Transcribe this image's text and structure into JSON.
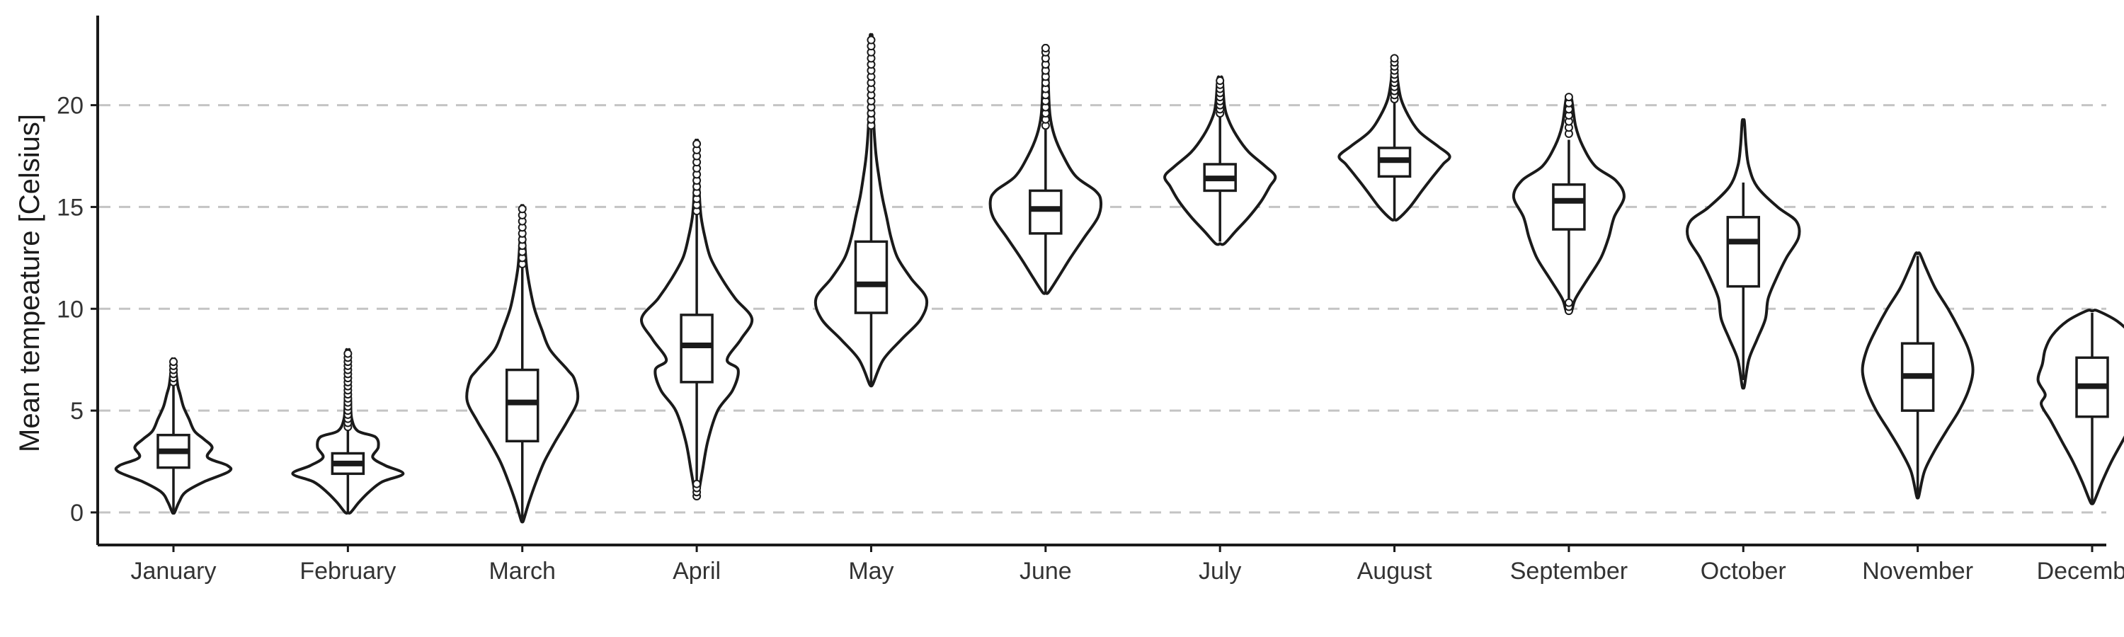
{
  "chart_data": {
    "type": "violin",
    "title": "",
    "xlabel": "",
    "ylabel": "Mean tempeature [Celsius]",
    "ylim": [
      -1.6,
      24.4
    ],
    "yticks": [
      0,
      5,
      10,
      15,
      20
    ],
    "grid": "horizontal dashed",
    "colors": {
      "ink": "#1a1a1a",
      "grid": "#c4c4c4",
      "fill": "#ffffff"
    },
    "categories": [
      "January",
      "February",
      "March",
      "April",
      "May",
      "June",
      "July",
      "August",
      "September",
      "October",
      "November",
      "December"
    ],
    "series": [
      {
        "category": "January",
        "min": 0.0,
        "q1": 2.2,
        "median": 3.0,
        "q3": 3.8,
        "max": 6.2,
        "density": [
          [
            0.0,
            0.02
          ],
          [
            0.5,
            0.1
          ],
          [
            1.0,
            0.22
          ],
          [
            1.5,
            0.55
          ],
          [
            2.0,
            1.0
          ],
          [
            2.3,
            0.98
          ],
          [
            2.7,
            0.62
          ],
          [
            3.2,
            0.7
          ],
          [
            3.6,
            0.55
          ],
          [
            4.0,
            0.38
          ],
          [
            4.6,
            0.28
          ],
          [
            5.2,
            0.18
          ],
          [
            5.8,
            0.12
          ],
          [
            6.2,
            0.08
          ],
          [
            6.8,
            0.05
          ],
          [
            7.5,
            0.03
          ]
        ],
        "outliers": [
          6.4,
          6.6,
          6.8,
          7.0,
          7.2,
          7.4
        ]
      },
      {
        "category": "February",
        "min": 0.0,
        "q1": 1.9,
        "median": 2.4,
        "q3": 2.9,
        "max": 4.0,
        "density": [
          [
            0.0,
            0.05
          ],
          [
            0.5,
            0.2
          ],
          [
            1.0,
            0.38
          ],
          [
            1.5,
            0.62
          ],
          [
            1.9,
            1.0
          ],
          [
            2.3,
            0.68
          ],
          [
            2.7,
            0.45
          ],
          [
            3.2,
            0.55
          ],
          [
            3.7,
            0.5
          ],
          [
            4.0,
            0.18
          ],
          [
            4.6,
            0.07
          ],
          [
            5.5,
            0.05
          ],
          [
            6.5,
            0.04
          ],
          [
            7.9,
            0.03
          ]
        ],
        "outliers": [
          4.2,
          4.4,
          4.6,
          4.8,
          5.0,
          5.2,
          5.4,
          5.6,
          5.8,
          6.0,
          6.2,
          6.4,
          6.6,
          6.8,
          7.0,
          7.2,
          7.4,
          7.6,
          7.8
        ]
      },
      {
        "category": "March",
        "min": -0.4,
        "q1": 3.5,
        "median": 5.4,
        "q3": 7.0,
        "max": 12.0,
        "density": [
          [
            -0.4,
            0.02
          ],
          [
            0.5,
            0.12
          ],
          [
            1.5,
            0.25
          ],
          [
            2.5,
            0.4
          ],
          [
            3.5,
            0.6
          ],
          [
            4.5,
            0.82
          ],
          [
            5.5,
            1.0
          ],
          [
            6.5,
            0.95
          ],
          [
            7.0,
            0.82
          ],
          [
            8.0,
            0.5
          ],
          [
            9.0,
            0.35
          ],
          [
            10.0,
            0.22
          ],
          [
            11.0,
            0.14
          ],
          [
            12.0,
            0.08
          ],
          [
            13.0,
            0.05
          ],
          [
            14.0,
            0.03
          ],
          [
            15.0,
            0.02
          ]
        ],
        "outliers": [
          12.2,
          12.5,
          12.8,
          13.1,
          13.4,
          13.7,
          14.0,
          14.3,
          14.6,
          14.9
        ]
      },
      {
        "category": "April",
        "min": 1.5,
        "q1": 6.4,
        "median": 8.2,
        "q3": 9.7,
        "max": 14.6,
        "density": [
          [
            0.8,
            0.02
          ],
          [
            2.0,
            0.1
          ],
          [
            3.5,
            0.2
          ],
          [
            5.0,
            0.38
          ],
          [
            6.0,
            0.65
          ],
          [
            7.0,
            0.75
          ],
          [
            7.5,
            0.55
          ],
          [
            8.5,
            0.8
          ],
          [
            9.5,
            1.0
          ],
          [
            10.5,
            0.7
          ],
          [
            11.5,
            0.45
          ],
          [
            12.5,
            0.25
          ],
          [
            13.5,
            0.15
          ],
          [
            14.5,
            0.08
          ],
          [
            15.5,
            0.05
          ],
          [
            17.0,
            0.03
          ],
          [
            18.2,
            0.02
          ]
        ],
        "outliers": [
          0.8,
          1.0,
          1.2,
          1.4,
          14.8,
          15.1,
          15.4,
          15.7,
          16.0,
          16.3,
          16.6,
          16.9,
          17.2,
          17.5,
          17.8,
          18.1
        ]
      },
      {
        "category": "May",
        "min": 6.3,
        "q1": 9.8,
        "median": 11.2,
        "q3": 13.3,
        "max": 18.8,
        "density": [
          [
            6.3,
            0.03
          ],
          [
            7.5,
            0.22
          ],
          [
            8.5,
            0.55
          ],
          [
            9.5,
            0.9
          ],
          [
            10.5,
            1.0
          ],
          [
            11.5,
            0.72
          ],
          [
            12.5,
            0.48
          ],
          [
            13.5,
            0.36
          ],
          [
            14.5,
            0.28
          ],
          [
            15.5,
            0.2
          ],
          [
            16.5,
            0.14
          ],
          [
            17.5,
            0.09
          ],
          [
            18.5,
            0.06
          ],
          [
            19.5,
            0.04
          ],
          [
            21.0,
            0.03
          ],
          [
            23.3,
            0.02
          ]
        ],
        "outliers": [
          19.0,
          19.3,
          19.6,
          19.9,
          20.2,
          20.5,
          20.8,
          21.1,
          21.4,
          21.7,
          22.0,
          22.3,
          22.6,
          22.9,
          23.2
        ]
      },
      {
        "category": "June",
        "min": 10.8,
        "q1": 13.7,
        "median": 14.9,
        "q3": 15.8,
        "max": 18.8,
        "density": [
          [
            10.8,
            0.05
          ],
          [
            11.5,
            0.22
          ],
          [
            12.5,
            0.45
          ],
          [
            13.5,
            0.7
          ],
          [
            14.5,
            0.95
          ],
          [
            15.3,
            1.0
          ],
          [
            15.8,
            0.9
          ],
          [
            16.5,
            0.55
          ],
          [
            17.5,
            0.32
          ],
          [
            18.5,
            0.16
          ],
          [
            19.5,
            0.08
          ],
          [
            21.0,
            0.05
          ],
          [
            22.8,
            0.03
          ]
        ],
        "outliers": [
          19.0,
          19.3,
          19.6,
          19.9,
          20.2,
          20.5,
          20.8,
          21.1,
          21.4,
          21.7,
          22.0,
          22.3,
          22.6,
          22.8
        ]
      },
      {
        "category": "July",
        "min": 13.3,
        "q1": 15.8,
        "median": 16.4,
        "q3": 17.1,
        "max": 19.4,
        "density": [
          [
            13.2,
            0.08
          ],
          [
            13.8,
            0.28
          ],
          [
            14.5,
            0.52
          ],
          [
            15.3,
            0.75
          ],
          [
            16.0,
            0.9
          ],
          [
            16.5,
            1.0
          ],
          [
            17.0,
            0.82
          ],
          [
            17.7,
            0.52
          ],
          [
            18.5,
            0.3
          ],
          [
            19.3,
            0.15
          ],
          [
            20.0,
            0.08
          ],
          [
            21.3,
            0.04
          ]
        ],
        "outliers": [
          19.6,
          19.8,
          20.0,
          20.2,
          20.4,
          20.6,
          20.8,
          21.0,
          21.2
        ]
      },
      {
        "category": "August",
        "min": 14.4,
        "q1": 16.5,
        "median": 17.3,
        "q3": 17.9,
        "max": 20.1,
        "density": [
          [
            14.4,
            0.06
          ],
          [
            15.0,
            0.28
          ],
          [
            15.8,
            0.5
          ],
          [
            16.5,
            0.7
          ],
          [
            17.1,
            0.88
          ],
          [
            17.5,
            1.0
          ],
          [
            18.0,
            0.78
          ],
          [
            18.7,
            0.45
          ],
          [
            19.5,
            0.25
          ],
          [
            20.3,
            0.12
          ],
          [
            21.2,
            0.06
          ],
          [
            22.2,
            0.03
          ]
        ],
        "outliers": [
          20.3,
          20.5,
          20.7,
          20.9,
          21.1,
          21.3,
          21.5,
          21.7,
          21.9,
          22.1,
          22.3
        ]
      },
      {
        "category": "September",
        "min": 10.5,
        "q1": 13.9,
        "median": 15.3,
        "q3": 16.1,
        "max": 18.3,
        "density": [
          [
            9.9,
            0.05
          ],
          [
            10.5,
            0.12
          ],
          [
            11.5,
            0.35
          ],
          [
            12.5,
            0.58
          ],
          [
            13.5,
            0.72
          ],
          [
            14.5,
            0.82
          ],
          [
            15.5,
            1.0
          ],
          [
            16.3,
            0.85
          ],
          [
            17.0,
            0.48
          ],
          [
            18.0,
            0.25
          ],
          [
            19.0,
            0.12
          ],
          [
            20.3,
            0.05
          ]
        ],
        "outliers": [
          9.9,
          10.1,
          10.3,
          18.6,
          18.9,
          19.2,
          19.5,
          19.8,
          20.1,
          20.4
        ]
      },
      {
        "category": "October",
        "min": 6.5,
        "q1": 11.1,
        "median": 13.3,
        "q3": 14.5,
        "max": 16.2,
        "density": [
          [
            6.2,
            0.02
          ],
          [
            7.5,
            0.1
          ],
          [
            8.5,
            0.25
          ],
          [
            9.5,
            0.4
          ],
          [
            10.5,
            0.45
          ],
          [
            11.5,
            0.6
          ],
          [
            12.5,
            0.78
          ],
          [
            13.5,
            1.0
          ],
          [
            14.3,
            0.96
          ],
          [
            15.0,
            0.62
          ],
          [
            16.0,
            0.25
          ],
          [
            17.0,
            0.1
          ],
          [
            18.0,
            0.05
          ],
          [
            19.2,
            0.02
          ]
        ],
        "outliers": []
      },
      {
        "category": "November",
        "min": 0.8,
        "q1": 5.0,
        "median": 6.7,
        "q3": 8.3,
        "max": 12.6,
        "density": [
          [
            0.8,
            0.02
          ],
          [
            2.0,
            0.12
          ],
          [
            3.0,
            0.3
          ],
          [
            4.0,
            0.52
          ],
          [
            5.0,
            0.75
          ],
          [
            6.0,
            0.92
          ],
          [
            7.0,
            1.0
          ],
          [
            8.0,
            0.92
          ],
          [
            9.0,
            0.75
          ],
          [
            10.0,
            0.55
          ],
          [
            11.0,
            0.32
          ],
          [
            12.0,
            0.15
          ],
          [
            12.7,
            0.04
          ]
        ],
        "outliers": []
      },
      {
        "category": "December",
        "min": 0.5,
        "q1": 4.7,
        "median": 6.2,
        "q3": 7.6,
        "max": 9.8,
        "density": [
          [
            0.5,
            0.03
          ],
          [
            1.5,
            0.18
          ],
          [
            2.5,
            0.35
          ],
          [
            3.5,
            0.55
          ],
          [
            4.5,
            0.75
          ],
          [
            5.3,
            0.92
          ],
          [
            5.8,
            0.85
          ],
          [
            6.5,
            0.98
          ],
          [
            7.3,
            0.9
          ],
          [
            8.0,
            0.85
          ],
          [
            8.7,
            0.72
          ],
          [
            9.4,
            0.45
          ],
          [
            9.9,
            0.1
          ]
        ],
        "outliers": []
      }
    ]
  }
}
